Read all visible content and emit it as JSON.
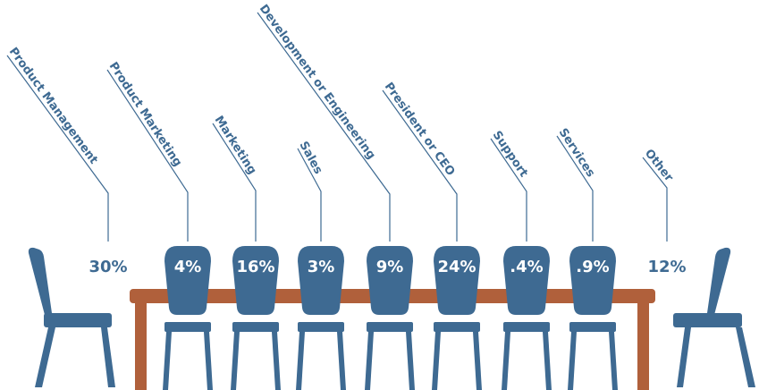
{
  "colors": {
    "chair": "#3e6a92",
    "table": "#b0603b",
    "text_on_chair": "#ffffff"
  },
  "chart_data": {
    "type": "bar",
    "categories": [
      "Product Management",
      "Product Marketing",
      "Marketing",
      "Sales",
      "Development or Engineering",
      "President or CEO",
      "Support",
      "Services",
      "Other"
    ],
    "values": [
      30,
      4,
      16,
      3,
      9,
      24,
      0.4,
      0.9,
      12
    ],
    "value_labels": [
      "30%",
      "4%",
      "16%",
      "3%",
      "9%",
      "24%",
      ".4%",
      ".9%",
      "12%"
    ]
  }
}
